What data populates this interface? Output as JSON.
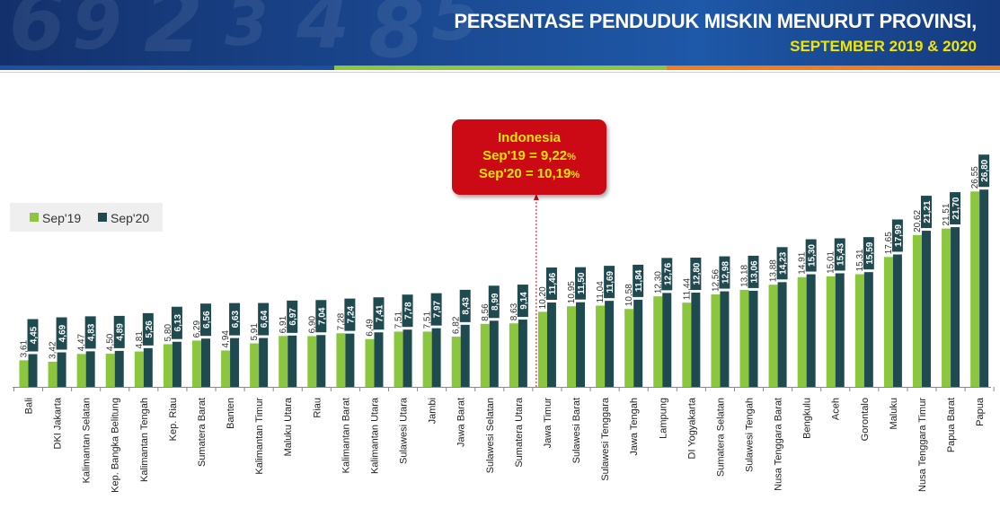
{
  "header": {
    "title_line1": "PERSENTASE PENDUDUK MISKIN MENURUT PROVINSI,",
    "title_line2": "SEPTEMBER 2019 & 2020"
  },
  "colors": {
    "sep19": "#8cc63f",
    "sep20": "#1f4b50",
    "callout_bg": "#cc0a15",
    "callout_text": "#f2e600",
    "banner": "#1b4a93"
  },
  "legend": {
    "sep19_label": "Sep'19",
    "sep20_label": "Sep'20"
  },
  "callout": {
    "title": "Indonesia",
    "line1": "Sep'19 = 9,22",
    "line2": "Sep'20 = 10,19",
    "unit": "%"
  },
  "chart_data": {
    "type": "bar",
    "title": "PERSENTASE PENDUDUK MISKIN MENURUT PROVINSI, SEPTEMBER 2019 & 2020",
    "categories": [
      "Bali",
      "DKI Jakarta",
      "Kalimantan Selatan",
      "Kep. Bangka Belitung",
      "Kalimantan Tengah",
      "Kep. Riau",
      "Sumatera Barat",
      "Banten",
      "Kalimantan Timur",
      "Maluku Utara",
      "Riau",
      "Kalimantan Barat",
      "Kalimantan Utara",
      "Sulawesi Utara",
      "Jambi",
      "Jawa Barat",
      "Sulawesi Selatan",
      "Sumatera Utara",
      "Jawa Timur",
      "Sulawesi Barat",
      "Sulawesi Tenggara",
      "Jawa Tengah",
      "Lampung",
      "DI Yogyakarta",
      "Sumatera Selatan",
      "Sulawesi Tengah",
      "Nusa Tenggara Barat",
      "Bengkulu",
      "Aceh",
      "Gorontalo",
      "Maluku",
      "Nusa Tenggara Timur",
      "Papua Barat",
      "Papua"
    ],
    "series": [
      {
        "name": "Sep'19",
        "values": [
          3.61,
          3.42,
          4.47,
          4.5,
          4.81,
          5.8,
          6.29,
          4.94,
          5.91,
          6.91,
          6.9,
          7.28,
          6.49,
          7.51,
          7.51,
          6.82,
          8.56,
          8.63,
          10.2,
          10.95,
          11.04,
          10.58,
          12.3,
          11.44,
          12.56,
          13.18,
          13.88,
          14.91,
          15.01,
          15.31,
          17.65,
          20.62,
          21.51,
          26.55
        ],
        "labels": [
          "3,61",
          "3,42",
          "4,47",
          "4,50",
          "4,81",
          "5,80",
          "6,29",
          "4,94",
          "5,91",
          "6,91",
          "6,90",
          "7,28",
          "6,49",
          "7,51",
          "7,51",
          "6,82",
          "8,56",
          "8,63",
          "10,20",
          "10,95",
          "11,04",
          "10,58",
          "12,30",
          "11,44",
          "12,56",
          "13,18",
          "13,88",
          "14,91",
          "15,01",
          "15,31",
          "17,65",
          "20,62",
          "21,51",
          "26,55"
        ]
      },
      {
        "name": "Sep'20",
        "values": [
          4.45,
          4.69,
          4.83,
          4.89,
          5.26,
          6.13,
          6.56,
          6.63,
          6.64,
          6.97,
          7.04,
          7.24,
          7.41,
          7.78,
          7.97,
          8.43,
          8.99,
          9.14,
          11.46,
          11.5,
          11.69,
          11.84,
          12.76,
          12.8,
          12.98,
          13.06,
          14.23,
          15.3,
          15.43,
          15.59,
          17.99,
          21.21,
          21.7,
          26.8
        ],
        "labels": [
          "4,45",
          "4,69",
          "4,83",
          "4,89",
          "5,26",
          "6,13",
          "6,56",
          "6,63",
          "6,64",
          "6,97",
          "7,04",
          "7,24",
          "7,41",
          "7,78",
          "7,97",
          "8,43",
          "8,99",
          "9,14",
          "11,46",
          "11,50",
          "11,69",
          "11,84",
          "12,76",
          "12,80",
          "12,98",
          "13,06",
          "14,23",
          "15,30",
          "15,43",
          "15,59",
          "17,99",
          "21,21",
          "21,70",
          "26,80"
        ]
      }
    ],
    "ylim": [
      0,
      28
    ],
    "reference_line": {
      "label": "Indonesia",
      "between": [
        "Sumatera Utara",
        "Jawa Timur"
      ]
    },
    "legend_position": "left",
    "grid": false,
    "xlabel": "",
    "ylabel": ""
  }
}
